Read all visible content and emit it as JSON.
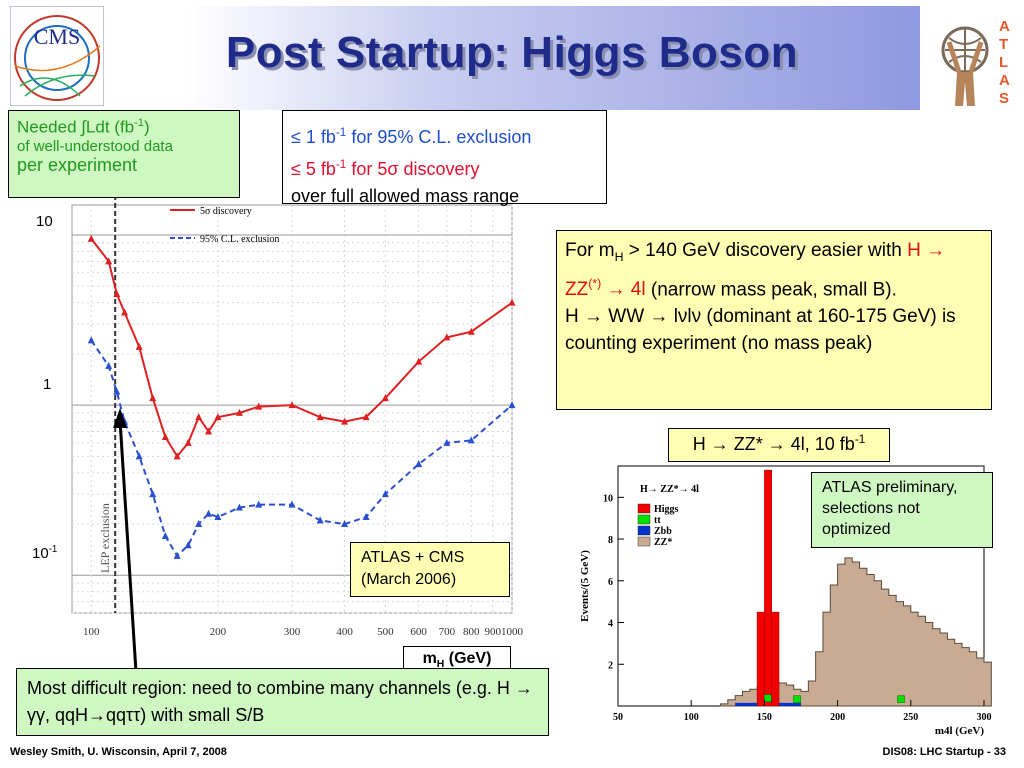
{
  "slide": {
    "title": "Post Startup: Higgs Boson",
    "footer_left": "Wesley Smith, U. Wisconsin, April 7, 2008",
    "footer_right": "DIS08: LHC Startup -  33",
    "logo_left_text": "CMS",
    "logo_right_text": "ATLAS"
  },
  "boxes": {
    "needed_l1": "Needed ∫Ldt (fb",
    "needed_l1_sup": "-1",
    "needed_l1_end": ")",
    "needed_l2": "of well-understood data",
    "needed_l3": "per experiment",
    "excl_l1_a": "≤ 1 fb",
    "excl_l1_sup": "-1",
    "excl_l1_b": " for 95% C.L. exclusion",
    "excl_l2_a": "≤ 5 fb",
    "excl_l2_sup": "-1",
    "excl_l2_b": " for 5σ discovery",
    "excl_l3": "over full allowed mass range",
    "mh140_a": "For m",
    "mh140_sub": "H",
    "mh140_b": " > 140 GeV discovery easier with ",
    "mh140_red_a": "H → ZZ",
    "mh140_red_sup": "(*)",
    "mh140_red_b": " → 4l",
    "mh140_c": " (narrow mass peak, small B).",
    "mh140_d": "H → WW → lνlν (dominant at 160-175 GeV) is counting experiment (no mass peak)",
    "zz_title_a": "H → ZZ* → 4l, 10 fb",
    "zz_title_sup": "-1",
    "atlas_prelim": "ATLAS preliminary, selections not optimized",
    "atlas_cms_l1": "ATLAS + CMS",
    "atlas_cms_l2": "(March 2006)",
    "difficult": "Most difficult region: need to combine many channels  (e.g. H → γγ, qqH→qqττ) with small S/B",
    "mh_label": "m",
    "mh_label_sub": "H",
    "mh_label_end": " (GeV)"
  },
  "chart_data": [
    {
      "type": "line",
      "xscale": "log",
      "yscale": "log",
      "xlabel": "mH (GeV)",
      "ylabel": "",
      "xlim": [
        90,
        1000
      ],
      "ylim": [
        0.06,
        15
      ],
      "y_ticks": [
        "10",
        "1",
        "10-1"
      ],
      "x_ticks": [
        "100",
        "200",
        "300",
        "400",
        "500",
        "600",
        "700",
        "800",
        "900",
        "1000"
      ],
      "annotation": "LEP exclusion",
      "lep_exclusion_x": 114,
      "legend_position": "top",
      "series": [
        {
          "name": "5σ discovery",
          "color": "#e02020",
          "style": "solid",
          "x": [
            100,
            110,
            115,
            120,
            130,
            140,
            150,
            160,
            170,
            180,
            190,
            200,
            225,
            250,
            300,
            350,
            400,
            450,
            500,
            600,
            700,
            800,
            1000
          ],
          "values": [
            9.5,
            7.0,
            4.5,
            3.5,
            2.2,
            1.1,
            0.65,
            0.5,
            0.6,
            0.85,
            0.7,
            0.85,
            0.9,
            0.98,
            1.0,
            0.85,
            0.8,
            0.85,
            1.1,
            1.8,
            2.5,
            2.7,
            4.0
          ]
        },
        {
          "name": "95% C.L. exclusion",
          "color": "#2a4fd0",
          "style": "dashed",
          "x": [
            100,
            110,
            115,
            120,
            130,
            140,
            150,
            160,
            170,
            180,
            190,
            200,
            225,
            250,
            300,
            350,
            400,
            450,
            500,
            600,
            700,
            800,
            1000
          ],
          "values": [
            2.4,
            1.7,
            1.2,
            0.8,
            0.5,
            0.3,
            0.17,
            0.13,
            0.15,
            0.2,
            0.23,
            0.22,
            0.25,
            0.26,
            0.26,
            0.21,
            0.2,
            0.22,
            0.3,
            0.45,
            0.6,
            0.62,
            1.0
          ]
        }
      ]
    },
    {
      "type": "bar",
      "title": "H→ ZZ*→ 4l",
      "xlabel": "m4l (GeV)",
      "ylabel": "Events/(5 GeV)",
      "xlim": [
        50,
        300
      ],
      "ylim": [
        0,
        11.5
      ],
      "x_ticks": [
        "50",
        "100",
        "150",
        "200",
        "250",
        "300"
      ],
      "y_ticks": [
        "2",
        "4",
        "6",
        "8",
        "10"
      ],
      "legend_position": "top-left",
      "legend": [
        {
          "name": "Higgs",
          "color": "#f20000"
        },
        {
          "name": "tt",
          "color": "#00e000"
        },
        {
          "name": "Zbb",
          "color": "#0033cc"
        },
        {
          "name": "ZZ*",
          "color": "#c9ab93"
        }
      ],
      "bin_width": 5,
      "zz_bins": {
        "start": 120,
        "values": [
          0.1,
          0.3,
          0.5,
          0.7,
          0.8,
          0.9,
          1.0,
          1.1,
          1.1,
          1.0,
          0.8,
          0.7,
          1.2,
          2.6,
          4.5,
          5.8,
          6.8,
          7.1,
          6.9,
          6.6,
          6.3,
          6.0,
          5.6,
          5.3,
          5.0,
          4.8,
          4.5,
          4.3,
          4.0,
          3.7,
          3.5,
          3.2,
          3.0,
          2.8,
          2.6,
          2.3,
          2.1
        ]
      },
      "higgs_bins": {
        "start": 145,
        "values": [
          4.5,
          11.3,
          4.5
        ]
      },
      "tt_points": [
        {
          "x": 152,
          "y": 0.4
        },
        {
          "x": 172,
          "y": 0.35
        },
        {
          "x": 243,
          "y": 0.35
        }
      ],
      "zbb_band": {
        "from": 130,
        "to": 175,
        "y": 0.15
      }
    }
  ]
}
